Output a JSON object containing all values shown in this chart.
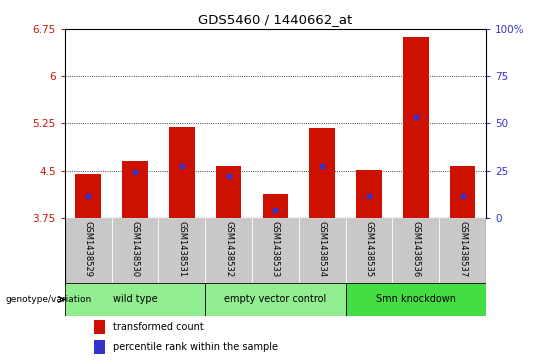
{
  "title": "GDS5460 / 1440662_at",
  "samples": [
    "GSM1438529",
    "GSM1438530",
    "GSM1438531",
    "GSM1438532",
    "GSM1438533",
    "GSM1438534",
    "GSM1438535",
    "GSM1438536",
    "GSM1438537"
  ],
  "red_values": [
    4.44,
    4.65,
    5.2,
    4.57,
    4.13,
    5.18,
    4.51,
    6.62,
    4.57
  ],
  "blue_values": [
    4.1,
    4.47,
    4.58,
    4.42,
    3.87,
    4.58,
    4.1,
    5.35,
    4.1
  ],
  "base": 3.75,
  "ylim_left": [
    3.75,
    6.75
  ],
  "ylim_right": [
    0,
    100
  ],
  "yticks_left": [
    3.75,
    4.5,
    5.25,
    6.0,
    6.75
  ],
  "yticks_right": [
    0,
    25,
    50,
    75,
    100
  ],
  "ytick_labels_left": [
    "3.75",
    "4.5",
    "5.25",
    "6",
    "6.75"
  ],
  "ytick_labels_right": [
    "0",
    "25",
    "50",
    "75",
    "100%"
  ],
  "groups": [
    {
      "label": "wild type",
      "start": 0,
      "end": 2,
      "color": "#90EE90"
    },
    {
      "label": "empty vector control",
      "start": 3,
      "end": 5,
      "color": "#90EE90"
    },
    {
      "label": "Smn knockdown",
      "start": 6,
      "end": 8,
      "color": "#44DD44"
    }
  ],
  "bar_color": "#CC1100",
  "blue_color": "#3333CC",
  "sample_bg_color": "#C8C8C8",
  "plot_bg": "#FFFFFF",
  "genotype_label": "genotype/variation",
  "legend_items": [
    {
      "color": "#CC1100",
      "label": "transformed count"
    },
    {
      "color": "#3333CC",
      "label": "percentile rank within the sample"
    }
  ],
  "grid_lines": [
    4.5,
    5.25,
    6.0
  ],
  "bar_width": 0.55
}
